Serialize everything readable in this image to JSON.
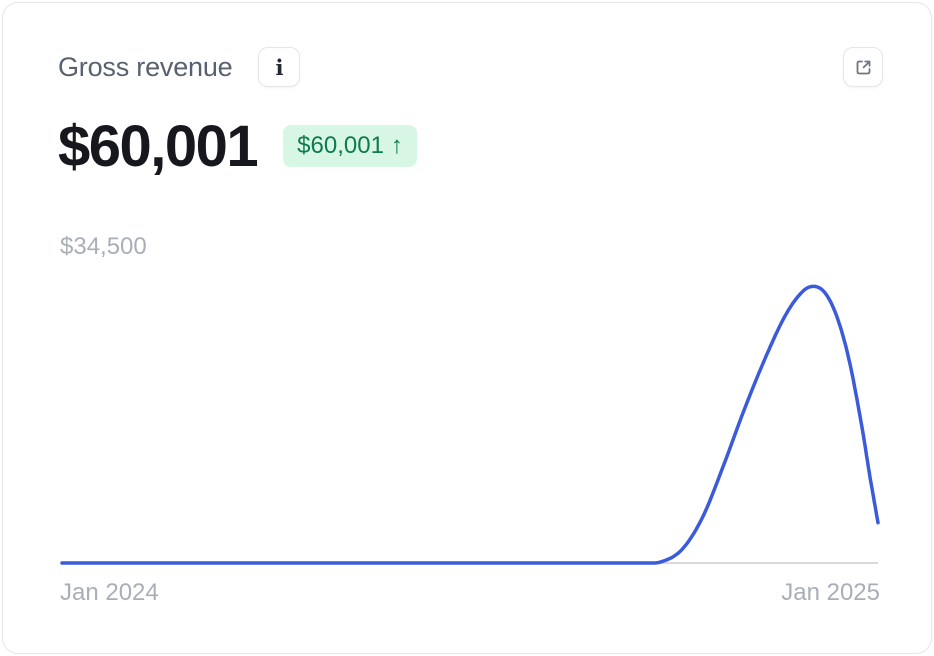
{
  "card": {
    "title": "Gross revenue",
    "info_glyph": "i",
    "metric_value": "$60,001",
    "badge": {
      "value": "$60,001",
      "arrow": "↑"
    },
    "y_axis_label": "$34,500",
    "x_axis": {
      "start": "Jan 2024",
      "end": "Jan 2025"
    }
  },
  "colors": {
    "line": "#3b5bdb",
    "baseline": "#d9d9d9",
    "badge_bg": "#d7f7e4",
    "badge_text": "#0e7a4f",
    "title_text": "#596171",
    "muted_text": "#a9aeb8",
    "metric_text": "#16181d",
    "border": "#e5e6e8",
    "icon": "#6e7683"
  },
  "chart_data": {
    "type": "line",
    "title": "Gross revenue",
    "series_name": "Gross revenue",
    "current_value": 60001,
    "x_range_labels": [
      "Jan 2024",
      "Jan 2025"
    ],
    "ylim": [
      0,
      34500
    ],
    "y_reference": {
      "value": 34500,
      "label": "$34,500"
    },
    "grid": false,
    "legend": false,
    "points": [
      [
        0.0,
        0
      ],
      [
        0.4,
        0
      ],
      [
        0.65,
        0
      ],
      [
        0.71,
        0
      ],
      [
        0.735,
        150
      ],
      [
        0.76,
        1500
      ],
      [
        0.785,
        5000
      ],
      [
        0.81,
        10500
      ],
      [
        0.835,
        16500
      ],
      [
        0.86,
        22000
      ],
      [
        0.885,
        26800
      ],
      [
        0.905,
        29400
      ],
      [
        0.92,
        30200
      ],
      [
        0.935,
        29500
      ],
      [
        0.95,
        26800
      ],
      [
        0.965,
        22000
      ],
      [
        0.98,
        15000
      ],
      [
        0.99,
        9500
      ],
      [
        1.0,
        4400
      ]
    ]
  }
}
